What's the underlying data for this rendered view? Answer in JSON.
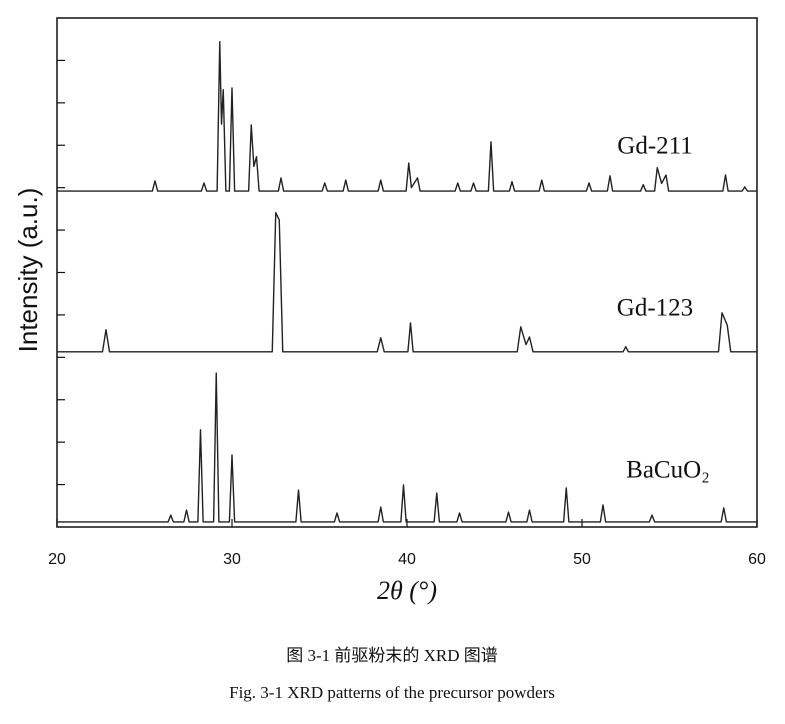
{
  "chart_data": {
    "type": "line",
    "xlabel": "2θ (°)",
    "ylabel": "Intensity (a.u.)",
    "captions": [
      "图 3-1  前驱粉末的 XRD 图谱",
      "Fig. 3-1 XRD patterns of the precursor powders"
    ],
    "xlim": [
      20,
      60
    ],
    "xticks": [
      20,
      30,
      40,
      50,
      60
    ],
    "ylim": [
      0,
      12
    ],
    "yticks": [
      1,
      2,
      3,
      4,
      5,
      6,
      7,
      8,
      9,
      10,
      11
    ],
    "series": [
      {
        "name": "Gd-211",
        "color": "#222222",
        "x": [
          20,
          25.45,
          25.6,
          25.75,
          28.25,
          28.4,
          28.55,
          29.15,
          29.3,
          29.4,
          29.5,
          29.65,
          29.85,
          30.0,
          30.15,
          30.95,
          31.1,
          31.25,
          31.4,
          31.55,
          32.65,
          32.8,
          32.95,
          35.15,
          35.3,
          35.45,
          36.35,
          36.5,
          36.65,
          38.35,
          38.5,
          38.65,
          39.95,
          40.1,
          40.25,
          40.6,
          40.75,
          42.75,
          42.9,
          43.05,
          43.65,
          43.8,
          43.95,
          44.65,
          44.8,
          44.95,
          45.85,
          46.0,
          46.15,
          47.55,
          47.7,
          47.85,
          50.25,
          50.4,
          50.55,
          51.45,
          51.6,
          51.75,
          53.35,
          53.5,
          53.65,
          54.15,
          54.3,
          54.55,
          54.8,
          54.95,
          58.05,
          58.2,
          58.35,
          59.15,
          59.3,
          59.45,
          60
        ],
        "values": [
          7.92,
          7.92,
          8.16,
          7.92,
          7.92,
          8.11,
          7.92,
          7.92,
          11.44,
          9.5,
          10.31,
          7.92,
          7.92,
          10.35,
          7.92,
          7.92,
          9.48,
          8.5,
          8.73,
          7.92,
          7.92,
          8.23,
          7.92,
          7.92,
          8.11,
          7.92,
          7.92,
          8.18,
          7.92,
          7.92,
          8.18,
          7.92,
          7.92,
          8.58,
          8.0,
          8.23,
          7.92,
          7.92,
          8.11,
          7.92,
          7.92,
          8.11,
          7.92,
          7.92,
          9.08,
          7.92,
          7.92,
          8.14,
          7.92,
          7.92,
          8.18,
          7.92,
          7.92,
          8.11,
          7.92,
          7.92,
          8.28,
          7.92,
          7.92,
          8.07,
          7.92,
          7.92,
          8.47,
          8.1,
          8.3,
          7.92,
          7.92,
          8.3,
          7.92,
          7.92,
          8.02,
          7.92,
          7.92
        ]
      },
      {
        "name": "Gd-123",
        "color": "#222222",
        "x": [
          20,
          22.6,
          22.8,
          23.0,
          32.3,
          32.5,
          32.7,
          32.9,
          38.3,
          38.5,
          38.7,
          40.05,
          40.2,
          40.35,
          46.3,
          46.5,
          46.8,
          47.0,
          47.2,
          52.35,
          52.5,
          52.65,
          57.8,
          58.0,
          58.3,
          58.5,
          60
        ],
        "values": [
          4.13,
          4.13,
          4.65,
          4.13,
          4.13,
          7.41,
          7.24,
          4.13,
          4.13,
          4.46,
          4.13,
          4.13,
          4.81,
          4.13,
          4.13,
          4.72,
          4.3,
          4.48,
          4.13,
          4.13,
          4.25,
          4.13,
          4.13,
          5.05,
          4.76,
          4.13,
          4.13
        ]
      },
      {
        "name": "BaCuO₂",
        "color": "#222222",
        "x": [
          20,
          26.35,
          26.5,
          26.65,
          27.25,
          27.4,
          27.55,
          28.05,
          28.2,
          28.35,
          28.95,
          29.1,
          29.25,
          29.85,
          30.0,
          30.15,
          33.65,
          33.8,
          33.95,
          35.85,
          36.0,
          36.15,
          38.35,
          38.5,
          38.65,
          39.65,
          39.8,
          39.95,
          41.55,
          41.7,
          41.85,
          42.85,
          43.0,
          43.15,
          45.65,
          45.8,
          45.95,
          46.85,
          47.0,
          47.15,
          48.95,
          49.1,
          49.25,
          51.05,
          51.2,
          51.35,
          53.85,
          54.0,
          54.15,
          57.95,
          58.1,
          58.25,
          60
        ],
        "values": [
          0.12,
          0.12,
          0.28,
          0.12,
          0.12,
          0.4,
          0.12,
          0.12,
          2.29,
          0.12,
          0.12,
          3.63,
          0.12,
          0.12,
          1.7,
          0.12,
          0.12,
          0.87,
          0.12,
          0.12,
          0.33,
          0.12,
          0.12,
          0.47,
          0.12,
          0.12,
          0.99,
          0.12,
          0.12,
          0.8,
          0.12,
          0.12,
          0.33,
          0.12,
          0.12,
          0.35,
          0.12,
          0.12,
          0.4,
          0.12,
          0.12,
          0.92,
          0.12,
          0.12,
          0.52,
          0.12,
          0.12,
          0.28,
          0.12,
          0.12,
          0.45,
          0.12,
          0.12
        ]
      }
    ]
  }
}
